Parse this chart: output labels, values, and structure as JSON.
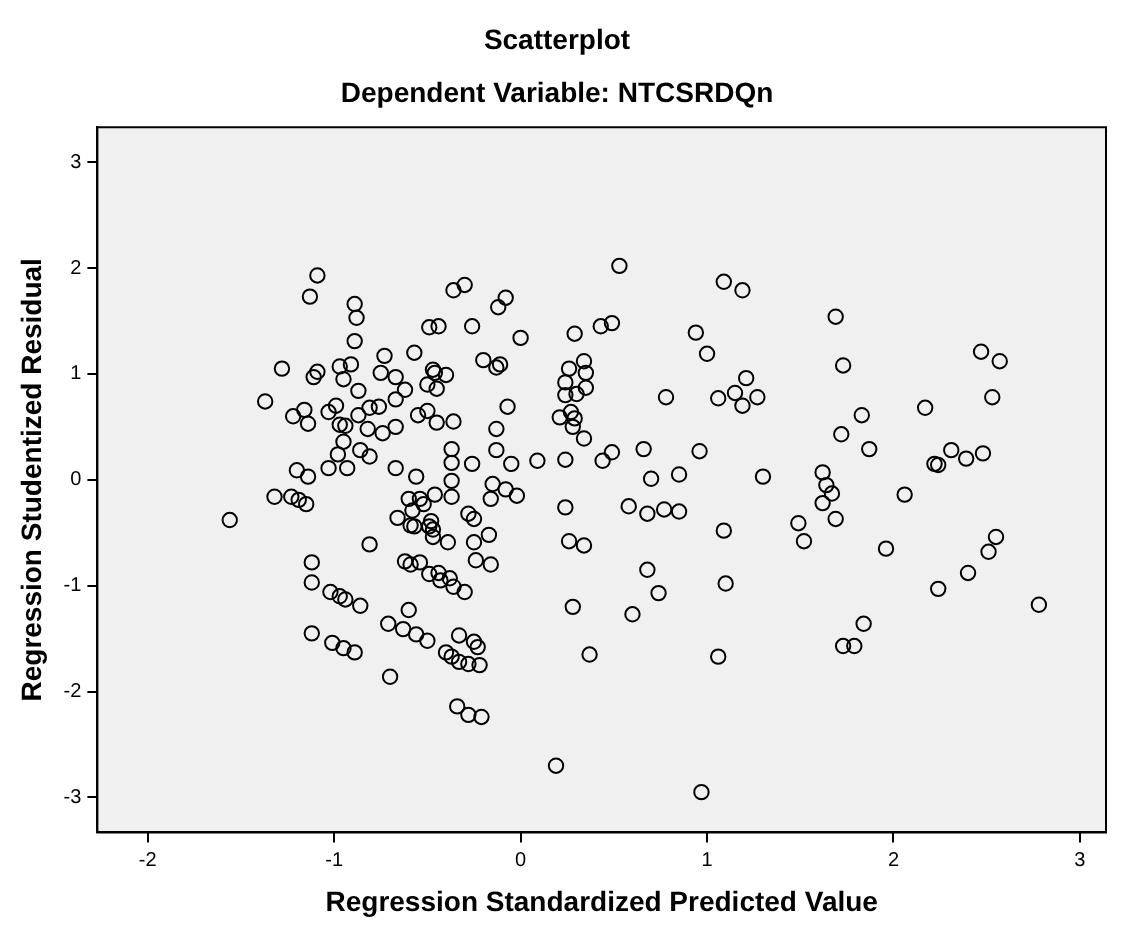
{
  "chart_data": {
    "type": "scatter",
    "title": "Scatterplot",
    "subtitle": "Dependent Variable: NTCSRDQn",
    "xlabel": "Regression Standardized Predicted Value",
    "ylabel": "Regression Studentized Residual",
    "color": "#000000",
    "marker": "circle",
    "grid": false,
    "legend": false,
    "xlim": [
      -2.27,
      3.14
    ],
    "ylim": [
      -3.33,
      3.33
    ],
    "xticks": [
      -2,
      -1,
      0,
      1,
      2,
      3
    ],
    "yticks": [
      -3,
      -2,
      -1,
      0,
      1,
      2,
      3
    ],
    "x": [
      -1.56,
      -1.37,
      -1.32,
      -1.28,
      -1.22,
      -1.2,
      -1.23,
      -1.19,
      -1.16,
      -1.14,
      -1.15,
      -1.14,
      -1.13,
      -1.09,
      -1.11,
      -1.09,
      -1.12,
      -1.12,
      -1.12,
      -1.03,
      -1.03,
      -1.02,
      -1.01,
      -0.99,
      -0.98,
      -0.97,
      -0.97,
      -0.95,
      -0.95,
      -0.94,
      -0.95,
      -0.97,
      -0.94,
      -0.93,
      -0.91,
      -0.89,
      -0.88,
      -0.89,
      -0.89,
      -0.87,
      -0.87,
      -0.86,
      -0.86,
      -0.82,
      -0.81,
      -0.81,
      -0.81,
      -0.76,
      -0.75,
      -0.74,
      -0.73,
      -0.71,
      -0.7,
      -0.67,
      -0.67,
      -0.67,
      -0.67,
      -0.66,
      -0.62,
      -0.63,
      -0.6,
      -0.57,
      -0.56,
      -0.55,
      -0.6,
      -0.58,
      -0.57,
      -0.59,
      -0.62,
      -0.59,
      -0.54,
      -0.56,
      -0.54,
      -0.52,
      -0.5,
      -0.5,
      -0.49,
      -0.47,
      -0.5,
      -0.49,
      -0.47,
      -0.48,
      -0.46,
      -0.49,
      -0.45,
      -0.45,
      -0.44,
      -0.46,
      -0.44,
      -0.43,
      -0.47,
      -0.4,
      -0.39,
      -0.38,
      -0.4,
      -0.37,
      -0.37,
      -0.37,
      -0.37,
      -0.37,
      -0.36,
      -0.36,
      -0.36,
      -0.33,
      -0.33,
      -0.34,
      -0.3,
      -0.3,
      -0.28,
      -0.28,
      -0.28,
      -0.26,
      -0.26,
      -0.25,
      -0.25,
      -0.25,
      -0.24,
      -0.23,
      -0.22,
      -0.21,
      -0.2,
      -0.17,
      -0.16,
      -0.16,
      -0.15,
      -0.13,
      -0.13,
      -0.13,
      -0.12,
      -0.11,
      -0.08,
      -0.08,
      -0.07,
      -0.05,
      -0.02,
      0,
      0.09,
      0.19,
      0.21,
      0.24,
      0.24,
      0.24,
      0.24,
      0.26,
      0.27,
      0.28,
      0.29,
      0.26,
      0.28,
      0.29,
      0.3,
      0.34,
      0.34,
      0.34,
      0.35,
      0.35,
      0.37,
      0.43,
      0.44,
      0.49,
      0.49,
      0.53,
      0.58,
      0.6,
      0.66,
      0.68,
      0.68,
      0.7,
      0.74,
      0.77,
      0.78,
      0.85,
      0.85,
      0.94,
      0.96,
      0.97,
      1,
      1.06,
      1.06,
      1.09,
      1.09,
      1.1,
      1.15,
      1.19,
      1.19,
      1.21,
      1.27,
      1.3,
      1.49,
      1.52,
      1.62,
      1.62,
      1.64,
      1.67,
      1.69,
      1.69,
      1.72,
      1.73,
      1.73,
      1.79,
      1.83,
      1.84,
      1.87,
      1.96,
      2.06,
      2.17,
      2.22,
      2.24,
      2.24,
      2.31,
      2.39,
      2.4,
      2.47,
      2.48,
      2.51,
      2.53,
      2.55,
      2.57,
      2.78
    ],
    "values": [
      -0.38,
      0.74,
      -0.16,
      1.05,
      0.6,
      0.09,
      -0.16,
      -0.19,
      0.66,
      0.53,
      -0.23,
      0.03,
      1.73,
      1.93,
      0.97,
      1.02,
      -0.78,
      -0.97,
      -1.45,
      0.64,
      0.11,
      -1.06,
      -1.54,
      0.7,
      0.24,
      1.07,
      0.52,
      0.95,
      0.36,
      0.51,
      -1.59,
      -1.1,
      -1.13,
      0.11,
      1.09,
      1.66,
      1.53,
      1.31,
      -1.63,
      0.84,
      0.61,
      0.28,
      -1.19,
      0.48,
      0.68,
      0.22,
      -0.61,
      0.69,
      1.01,
      0.44,
      1.17,
      -1.36,
      -1.86,
      0.97,
      0.76,
      0.5,
      0.11,
      -0.36,
      0.85,
      -1.41,
      -1.23,
      1.2,
      0.03,
      0.61,
      -0.18,
      -0.29,
      -0.44,
      -0.43,
      -0.77,
      -0.8,
      -0.78,
      -1.46,
      -0.18,
      -0.23,
      0.65,
      -1.52,
      1.44,
      1.04,
      0.9,
      -0.44,
      -0.47,
      -0.39,
      -0.14,
      -0.89,
      0.86,
      0.54,
      1.45,
      1.01,
      -0.88,
      -0.95,
      -0.54,
      0.99,
      -0.59,
      -0.93,
      -1.63,
      -1.67,
      0.29,
      0.16,
      -0.01,
      -0.16,
      0.55,
      -1.01,
      1.79,
      -1.72,
      -1.47,
      -2.14,
      1.84,
      -1.06,
      -0.32,
      -1.74,
      -2.22,
      1.45,
      0.15,
      -1.53,
      -0.37,
      -0.59,
      -0.76,
      -1.58,
      -1.75,
      -2.24,
      1.13,
      -0.52,
      -0.8,
      -0.18,
      -0.04,
      1.06,
      0.48,
      0.28,
      1.63,
      1.09,
      1.72,
      -0.09,
      0.69,
      0.15,
      -0.15,
      1.34,
      0.18,
      -2.7,
      0.59,
      -0.26,
      0.19,
      0.92,
      0.8,
      1.05,
      0.64,
      0.5,
      0.58,
      -0.58,
      -1.2,
      1.38,
      0.81,
      -0.62,
      0.39,
      1.12,
      1.01,
      0.87,
      -1.65,
      1.45,
      0.18,
      1.48,
      0.26,
      2.02,
      -0.25,
      -1.27,
      0.29,
      -0.32,
      -0.85,
      0.01,
      -1.07,
      -0.28,
      0.78,
      0.05,
      -0.3,
      1.39,
      0.27,
      -2.95,
      1.19,
      0.77,
      -1.67,
      -0.48,
      1.87,
      -0.98,
      0.82,
      1.79,
      0.7,
      0.96,
      0.78,
      0.03,
      -0.41,
      -0.58,
      0.07,
      -0.22,
      -0.05,
      -0.13,
      -0.37,
      1.54,
      0.43,
      1.08,
      -1.57,
      -1.57,
      0.61,
      -1.36,
      0.29,
      -0.65,
      -0.14,
      0.68,
      0.15,
      0.14,
      -1.03,
      0.28,
      0.2,
      -0.88,
      1.21,
      0.25,
      -0.68,
      0.78,
      -0.54,
      1.12,
      -1.18
    ]
  }
}
